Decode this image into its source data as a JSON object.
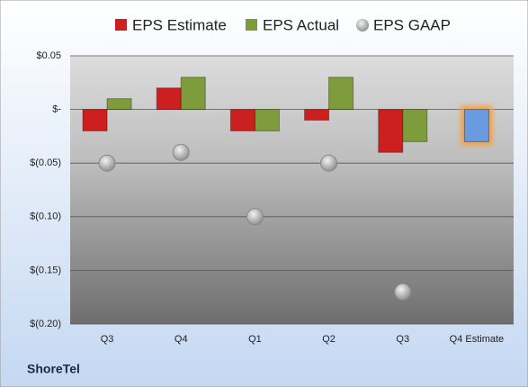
{
  "chart_data": {
    "type": "bar",
    "categories": [
      "Q3",
      "Q4",
      "Q1",
      "Q2",
      "Q3",
      "Q4 Estimate"
    ],
    "series": [
      {
        "name": "EPS Estimate",
        "type": "bar",
        "color": "#cc2020",
        "highlight_color": "#6a9be0",
        "values": [
          -0.02,
          0.02,
          -0.02,
          -0.01,
          -0.04,
          -0.03
        ]
      },
      {
        "name": "EPS Actual",
        "type": "bar",
        "color": "#7e9c3c",
        "values": [
          0.01,
          0.03,
          -0.02,
          0.03,
          -0.03,
          null
        ]
      },
      {
        "name": "EPS GAAP",
        "type": "scatter",
        "color": "#a8a8a8",
        "values": [
          -0.05,
          -0.04,
          -0.1,
          -0.05,
          -0.17,
          null
        ]
      }
    ],
    "ylim": [
      -0.2,
      0.05
    ],
    "yticks": [
      {
        "value": 0.05,
        "label": "$0.05"
      },
      {
        "value": 0,
        "label": "$-"
      },
      {
        "value": -0.05,
        "label": "$(0.05)"
      },
      {
        "value": -0.1,
        "label": "$(0.10)"
      },
      {
        "value": -0.15,
        "label": "$(0.15)"
      },
      {
        "value": -0.2,
        "label": "$(0.20)"
      }
    ],
    "grid": true,
    "footer": "ShoreTel"
  }
}
